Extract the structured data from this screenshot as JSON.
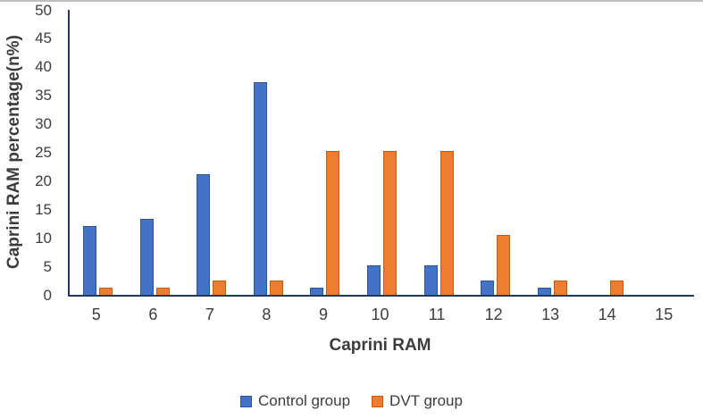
{
  "figure": {
    "background": "#ffffff",
    "top_rule_color": "#bfbfbf",
    "axis_color": "#1F3864",
    "text_color": "#3c3c3c"
  },
  "chart_data": {
    "type": "bar",
    "title": "",
    "xlabel": "Caprini RAM",
    "ylabel": "Caprini RAM percentage(n%)",
    "categories": [
      "5",
      "6",
      "7",
      "8",
      "9",
      "10",
      "11",
      "12",
      "13",
      "14",
      "15"
    ],
    "series": [
      {
        "name": "Control group",
        "color": "#4472C4",
        "border_color": "#2F5597",
        "values": [
          12,
          13.3,
          21.2,
          37.3,
          1.2,
          5.1,
          5.1,
          2.5,
          1.2,
          0,
          0
        ]
      },
      {
        "name": "DVT group",
        "color": "#ED7D31",
        "border_color": "#C55A11",
        "values": [
          1.2,
          1.2,
          2.5,
          2.5,
          25.2,
          25.2,
          25.2,
          10.5,
          2.5,
          2.5,
          0
        ]
      }
    ],
    "ylim": [
      0,
      50
    ],
    "ytick_step": 5,
    "grid": false,
    "legend_position": "bottom"
  }
}
